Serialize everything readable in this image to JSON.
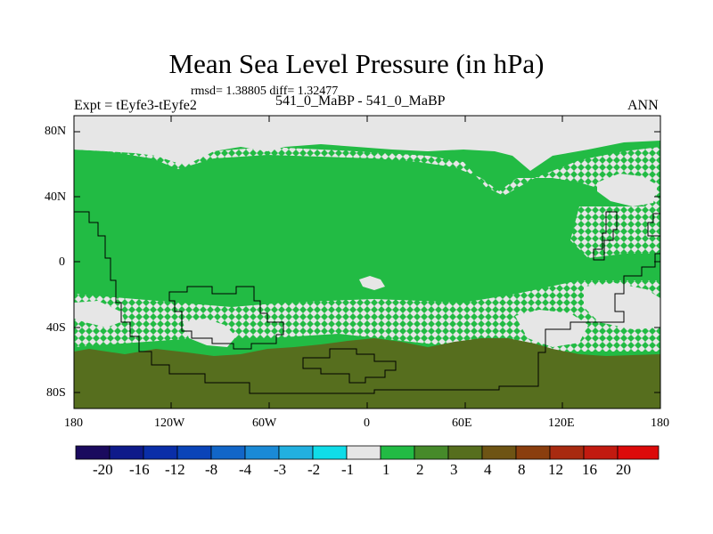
{
  "title": "Mean Sea Level Pressure (in hPa)",
  "stats": "rmsd= 1.38805 diff= 1.32477",
  "expt": "Expt = tEyfe3-tEyfe2",
  "case": "541_0_MaBP - 541_0_MaBP",
  "season": "ANN",
  "axes": {
    "lat_labels": [
      "80N",
      "40N",
      "0",
      "40S",
      "80S"
    ],
    "lon_labels": [
      "180",
      "120W",
      "60W",
      "0",
      "60E",
      "120E",
      "180"
    ],
    "lat_range": [
      -90,
      90
    ],
    "lon_range": [
      -180,
      180
    ]
  },
  "colorbar": {
    "levels": [
      "-20",
      "-16",
      "-12",
      "-8",
      "-4",
      "-3",
      "-2",
      "-1",
      "1",
      "2",
      "3",
      "4",
      "8",
      "12",
      "16",
      "20"
    ],
    "colors": [
      "#1a0a5e",
      "#0e1a8a",
      "#0a2ea8",
      "#0a44b8",
      "#1266c8",
      "#1a8ad6",
      "#22b0e0",
      "#10dce8",
      "#e6e6e6",
      "#22bb44",
      "#468a2a",
      "#566e1e",
      "#6e5414",
      "#8a3e0e",
      "#a82a10",
      "#c21a10",
      "#dc0a0a"
    ]
  },
  "colors": {
    "land_green": "#22bb44",
    "high_brown": "#566e1e",
    "near_zero": "#e6e6e6",
    "coast": "#000000"
  }
}
